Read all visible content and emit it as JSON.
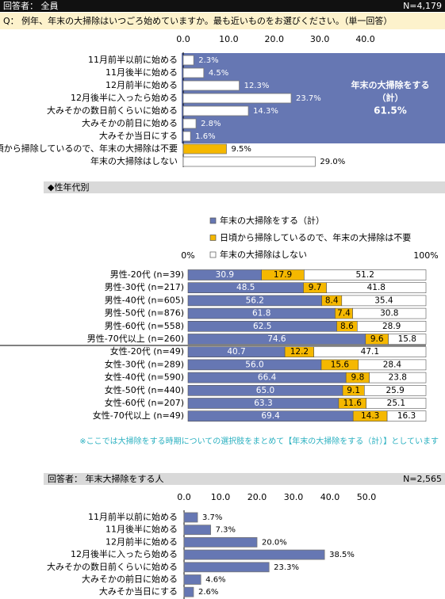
{
  "header": {
    "respondent": "回答者：  全員",
    "n": "N=4,179",
    "question": "Q：  例年、年末の大掃除はいつごろ始めていますか。最も近いものをお選びください。（単一回答）"
  },
  "chart_data": [
    {
      "type": "hbar",
      "categories": [
        "11月前半以前に始める",
        "11月後半に始める",
        "12月前半に始める",
        "12月後半に入ったら始める",
        "大みそかの数日前くらいに始める",
        "大みそかの前日に始める",
        "大みそか当日にする",
        "日頃から掃除しているので、年末の大掃除は不要",
        "年末の大掃除はしない"
      ],
      "values": [
        2.3,
        4.5,
        12.3,
        23.7,
        14.3,
        2.8,
        1.6,
        9.5,
        29.0
      ],
      "value_labels": [
        "2.3%",
        "4.5%",
        "12.3%",
        "23.7%",
        "14.3%",
        "2.8%",
        "1.6%",
        "9.5%",
        "29.0%"
      ],
      "colors": [
        "#ffffff",
        "#ffffff",
        "#ffffff",
        "#ffffff",
        "#ffffff",
        "#ffffff",
        "#ffffff",
        "#f5b800",
        "#ffffff"
      ],
      "xlim": [
        0,
        57.5
      ],
      "xticks": [
        {
          "value": 0,
          "label": "0.0"
        },
        {
          "value": 10,
          "label": "10.0"
        },
        {
          "value": 20,
          "label": "20.0"
        },
        {
          "value": 30,
          "label": "30.0"
        },
        {
          "value": 40,
          "label": "40.0"
        }
      ],
      "annotation": [
        "年末の大掃除をする",
        "（計）",
        "61.5%"
      ]
    },
    {
      "type": "stacked",
      "title": "◆性年代別",
      "categories": [
        "男性-20代 (n=39)",
        "男性-30代 (n=217)",
        "男性-40代 (n=605)",
        "男性-50代 (n=876)",
        "男性-60代 (n=558)",
        "男性-70代以上 (n=260)",
        "女性-20代 (n=49)",
        "女性-30代 (n=289)",
        "女性-40代 (n=590)",
        "女性-50代 (n=440)",
        "女性-60代 (n=207)",
        "女性-70代以上 (n=49)"
      ],
      "series": [
        {
          "name": "年末の大掃除をする（計）",
          "color": "#6677b3",
          "values": [
            30.9,
            48.5,
            56.2,
            61.8,
            62.5,
            74.6,
            40.7,
            56.0,
            66.4,
            65.0,
            63.3,
            69.4
          ],
          "value_labels": [
            "30.9",
            "48.5",
            "56.2",
            "61.8",
            "62.5",
            "74.6",
            "40.7",
            "56.0",
            "66.4",
            "65.0",
            "63.3",
            "69.4"
          ]
        },
        {
          "name": "日頃から掃除しているので、年末の大掃除は不要",
          "color": "#f5b800",
          "values": [
            17.9,
            9.7,
            8.4,
            7.4,
            8.6,
            9.6,
            12.2,
            15.6,
            9.8,
            9.1,
            11.6,
            14.3
          ],
          "value_labels": [
            "17.9",
            "9.7",
            "8.4",
            "7.4",
            "8.6",
            "9.6",
            "12.2",
            "15.6",
            "9.8",
            "9.1",
            "11.6",
            "14.3"
          ]
        },
        {
          "name": "年末の大掃除はしない",
          "color": "#ffffff",
          "values": [
            51.2,
            41.8,
            35.4,
            30.8,
            28.9,
            15.8,
            47.1,
            28.4,
            23.8,
            25.9,
            25.1,
            16.3
          ],
          "value_labels": [
            "51.2",
            "41.8",
            "35.4",
            "30.8",
            "28.9",
            "15.8",
            "47.1",
            "28.4",
            "23.8",
            "25.9",
            "25.1",
            "16.3"
          ]
        }
      ],
      "xlim": [
        0,
        100
      ],
      "xticks": [
        {
          "value": 0,
          "label": "0%"
        },
        {
          "value": 100,
          "label": "100%"
        }
      ],
      "note": "※ここでは大掃除をする時期についての選択肢をまとめて【年末の大掃除をする（計）】としています"
    },
    {
      "type": "hbar",
      "title": "回答者：  年末大掃除をする人",
      "n": "N=2,565",
      "categories": [
        "11月前半以前に始める",
        "11月後半に始める",
        "12月前半に始める",
        "12月後半に入ったら始める",
        "大みそかの数日前くらいに始める",
        "大みそかの前日に始める",
        "大みそか当日にする"
      ],
      "values": [
        3.7,
        7.3,
        20.0,
        38.5,
        23.3,
        4.6,
        2.6
      ],
      "value_labels": [
        "3.7%",
        "7.3%",
        "20.0%",
        "38.5%",
        "23.3%",
        "4.6%",
        "2.6%"
      ],
      "color": "#6677b3",
      "xlim": [
        0,
        65
      ],
      "xticks": [
        {
          "value": 0,
          "label": "0.0"
        },
        {
          "value": 10,
          "label": "10.0"
        },
        {
          "value": 20,
          "label": "20.0"
        },
        {
          "value": 30,
          "label": "30.0"
        },
        {
          "value": 40,
          "label": "40.0"
        },
        {
          "value": 50,
          "label": "50.0"
        }
      ]
    }
  ]
}
